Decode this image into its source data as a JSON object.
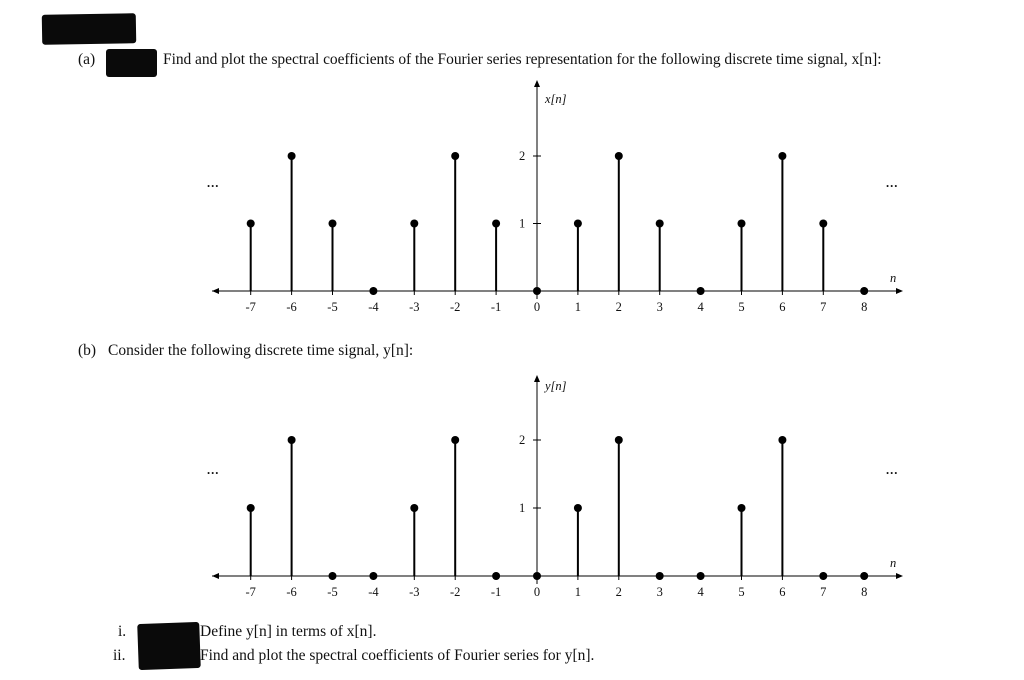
{
  "part_a": {
    "label": "(a)",
    "text": "Find and plot the spectral coefficients of the Fourier series representation for the following discrete time signal, x[n]:"
  },
  "part_b": {
    "label": "(b)",
    "text": "Consider the following discrete time signal, y[n]:",
    "items": [
      {
        "label": "i.",
        "text": "Define y[n] in terms of x[n]."
      },
      {
        "label": "ii.",
        "text": "Find and plot the spectral coefficients of Fourier series for y[n]."
      }
    ]
  },
  "chart_data": [
    {
      "type": "stem",
      "ylabel": "x[n]",
      "xlabel": "n",
      "continuation": "...",
      "x": [
        -7,
        -6,
        -5,
        -4,
        -3,
        -2,
        -1,
        0,
        1,
        2,
        3,
        4,
        5,
        6,
        7,
        8
      ],
      "values": [
        1,
        2,
        1,
        0,
        1,
        2,
        1,
        0,
        1,
        2,
        1,
        0,
        1,
        2,
        1,
        0
      ],
      "yticks": [
        1,
        2
      ],
      "color": "#000000"
    },
    {
      "type": "stem",
      "ylabel": "y[n]",
      "xlabel": "n",
      "continuation": "...",
      "x": [
        -7,
        -6,
        -5,
        -4,
        -3,
        -2,
        -1,
        0,
        1,
        2,
        3,
        4,
        5,
        6,
        7,
        8
      ],
      "values": [
        1,
        2,
        0,
        0,
        1,
        2,
        0,
        0,
        1,
        2,
        0,
        0,
        1,
        2,
        0,
        0
      ],
      "yticks": [
        1,
        2
      ],
      "color": "#000000"
    }
  ]
}
